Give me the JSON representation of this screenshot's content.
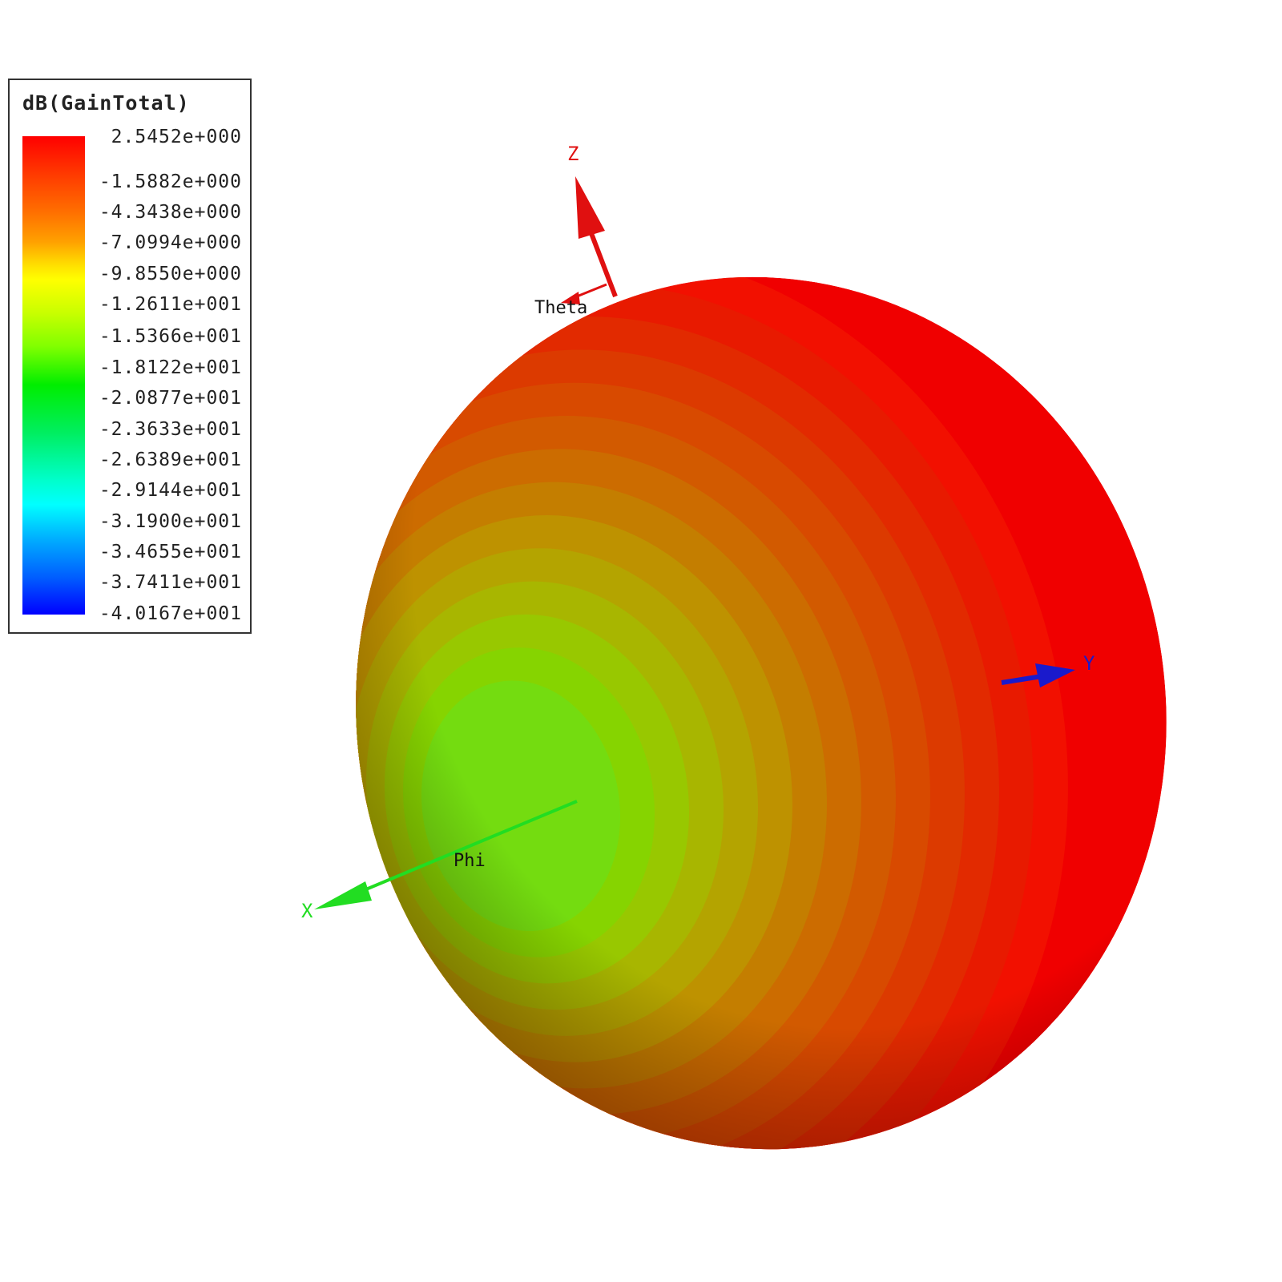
{
  "chart_data": {
    "type": "3d-radiation-pattern",
    "title": "dB(GainTotal)",
    "colorbar": {
      "label": "dB(GainTotal)",
      "max": 2.5452,
      "min": -40.167,
      "ticks": [
        "2.5452e+000",
        "-1.5882e+000",
        "-4.3438e+000",
        "-7.0994e+000",
        "-9.8550e+000",
        "-1.2611e+001",
        "-1.5366e+001",
        "-1.8122e+001",
        "-2.0877e+001",
        "-2.3633e+001",
        "-2.6389e+001",
        "-2.9144e+001",
        "-3.1900e+001",
        "-3.4655e+001",
        "-3.7411e+001",
        "-4.0167e+001"
      ],
      "colormap": "jet"
    },
    "axes": {
      "x": {
        "label": "X",
        "color": "#22dd22"
      },
      "y": {
        "label": "Y",
        "color": "#1a1acc"
      },
      "z": {
        "label": "Z",
        "color": "#e01010"
      },
      "theta_label": "Theta",
      "phi_label": "Phi"
    },
    "pattern": {
      "shape": "doughnut",
      "null_direction": "x-axis",
      "max_color": "#ff0000",
      "null_color": "#70dd10"
    }
  }
}
